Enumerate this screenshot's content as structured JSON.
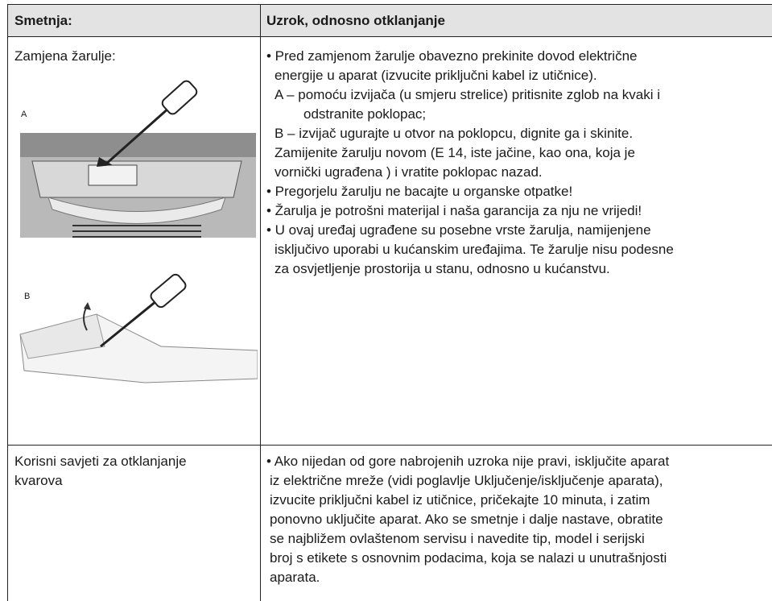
{
  "table": {
    "header": [
      "Smetnja:",
      "Uzrok, odnosno otklanjanje"
    ],
    "rows": [
      {
        "problem": [
          "Zamjena žarulje:"
        ],
        "figures": [
          "A",
          "B"
        ],
        "remedy": [
          "• Pred zamjenom žarulje obavezno prekinite dovod električne",
          "energije u aparat (izvucite priključni kabel iz utičnice).",
          "A – pomoću izvijača (u smjeru strelice) pritisnite zglob na kvaki i",
          "odstranite poklopac;",
          "B – izvijač ugurajte u otvor na poklopcu, dignite ga i skinite.",
          "Zamijenite žarulju novom (E 14, iste jačine, kao ona, koja je",
          "vornički ugrađena ) i vratite poklopac nazad.",
          "• Pregorjelu žarulju ne bacajte u organske otpatke!",
          "• Žarulja je potrošni materijal i naša garancija za nju ne vrijedi!",
          "• U ovaj uređaj ugrađene su posebne vrste žarulja, namijenjene",
          "isključivo uporabi u kućanskim uređajima. Te žarulje nisu podesne",
          "za osvjetljenje prostorija u stanu, odnosno u kućanstvu."
        ]
      },
      {
        "problem": [
          "Korisni savjeti za otklanjanje",
          "kvarova"
        ],
        "remedy": [
          "• Ako nijedan od gore nabrojenih uzroka nije pravi, isključite aparat",
          "iz električne mreže (vidi poglavlje Uključenje/isključenje aparata),",
          "izvucite priključni kabel iz utičnice, pričekajte 10 minuta, i zatim",
          "ponovno uključite aparat. Ako se smetnje i dalje nastave, obratite",
          "se najbližem ovlaštenom servisu i navedite tip, model i serijski",
          "broj s etikete s osnovnim podacima, koja se nalazi u unutrašnjosti",
          "aparata."
        ]
      }
    ]
  }
}
